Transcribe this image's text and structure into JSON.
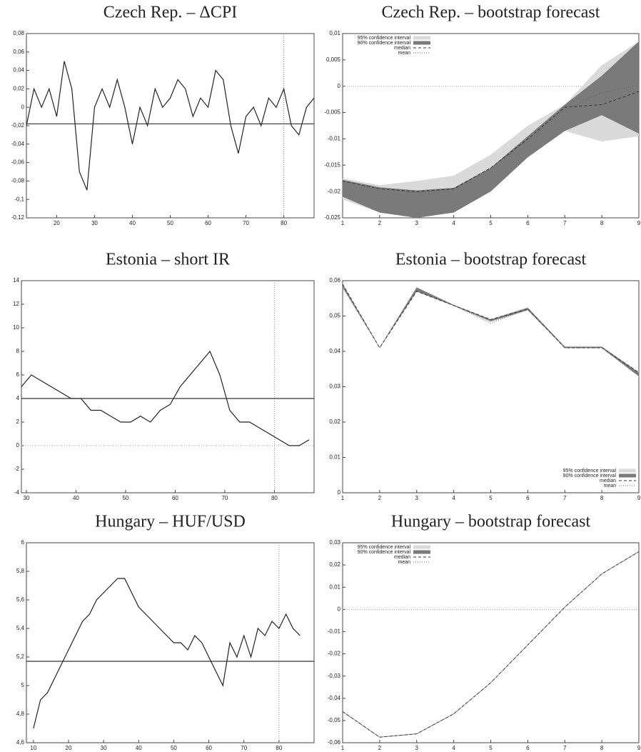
{
  "chart_data": [
    {
      "type": "line",
      "title": "Czech Rep. – ΔCPI",
      "x": [
        12,
        14,
        16,
        18,
        20,
        22,
        24,
        26,
        28,
        30,
        32,
        34,
        36,
        38,
        40,
        42,
        44,
        46,
        48,
        50,
        52,
        54,
        56,
        58,
        60,
        62,
        64,
        66,
        68,
        70,
        72,
        74,
        76,
        78,
        80,
        82,
        84,
        86,
        88
      ],
      "series": [
        {
          "color": "#222222",
          "values": [
            -0.02,
            0.02,
            0.0,
            0.02,
            -0.01,
            0.05,
            0.02,
            -0.07,
            -0.09,
            0.0,
            0.02,
            0.0,
            0.03,
            0.0,
            -0.04,
            0.0,
            -0.02,
            0.02,
            0.0,
            0.01,
            0.03,
            0.02,
            -0.01,
            0.01,
            0.0,
            0.04,
            0.03,
            -0.02,
            -0.05,
            -0.01,
            0.0,
            -0.02,
            0.01,
            0.0,
            0.02,
            -0.02,
            -0.03,
            0.0,
            0.01
          ]
        }
      ],
      "hline": -0.018,
      "vline": 80,
      "xlim": [
        12,
        88
      ],
      "xticks": [
        20,
        30,
        40,
        50,
        60,
        70,
        80
      ],
      "ylim": [
        -0.12,
        0.08
      ],
      "yticks": [
        {
          "value": -0.12,
          "label": "-0,12"
        },
        {
          "value": -0.1,
          "label": "-0,1"
        },
        {
          "value": -0.08,
          "label": "-0,08"
        },
        {
          "value": -0.06,
          "label": "-0,06"
        },
        {
          "value": -0.04,
          "label": "-0,04"
        },
        {
          "value": -0.02,
          "label": "-0,02"
        },
        0,
        {
          "value": 0.02,
          "label": "0,02"
        },
        {
          "value": 0.04,
          "label": "0,04"
        },
        {
          "value": 0.06,
          "label": "0,06"
        },
        {
          "value": 0.08,
          "label": "0,08"
        }
      ]
    },
    {
      "type": "line",
      "title": "Czech Rep. – bootstrap forecast",
      "x": [
        1,
        2,
        3,
        4,
        5,
        6,
        7,
        8,
        9
      ],
      "zero_line": true,
      "legend": "upper left",
      "series": [
        {
          "name": "95% confidence interval",
          "color": "#dadada",
          "lower": [
            -0.0215,
            -0.024,
            -0.025,
            -0.024,
            -0.02,
            -0.0135,
            -0.0085,
            -0.0105,
            -0.0095
          ],
          "upper": [
            -0.0175,
            -0.0188,
            -0.018,
            -0.017,
            -0.013,
            -0.0075,
            -0.0035,
            0.004,
            0.0085
          ]
        },
        {
          "name": "90% confidence interval",
          "color": "#7a7a7a",
          "lower": [
            -0.021,
            -0.024,
            -0.025,
            -0.024,
            -0.02,
            -0.0135,
            -0.0085,
            -0.0055,
            -0.009
          ],
          "upper": [
            -0.0178,
            -0.0192,
            -0.0198,
            -0.0193,
            -0.0155,
            -0.0095,
            -0.0035,
            0.002,
            0.0085
          ]
        },
        {
          "name": "median",
          "color": "#333333",
          "dash": "dashed",
          "values": [
            -0.018,
            -0.0195,
            -0.02,
            -0.0195,
            -0.0155,
            -0.01,
            -0.004,
            -0.0035,
            -0.001
          ]
        },
        {
          "name": "mean",
          "color": "#666666",
          "dash": "dotted",
          "values": [
            -0.018,
            -0.0195,
            -0.0202,
            -0.0196,
            -0.0157,
            -0.0102,
            -0.0045,
            -0.0012,
            0.0002
          ]
        }
      ],
      "xlim": [
        1,
        9
      ],
      "xticks": [
        1,
        2,
        3,
        4,
        5,
        6,
        7,
        8,
        9
      ],
      "ylim": [
        -0.025,
        0.01
      ],
      "yticks": [
        {
          "value": -0.025,
          "label": "-0,025"
        },
        {
          "value": -0.02,
          "label": "-0,02"
        },
        {
          "value": -0.015,
          "label": "-0,015"
        },
        {
          "value": -0.01,
          "label": "-0,01"
        },
        {
          "value": -0.005,
          "label": "-0,005"
        },
        0,
        {
          "value": 0.005,
          "label": "0,005"
        },
        {
          "value": 0.01,
          "label": "0,01"
        }
      ]
    },
    {
      "type": "line",
      "title": "Estonia – short IR",
      "x": [
        29,
        31,
        33,
        35,
        37,
        39,
        41,
        43,
        45,
        47,
        49,
        51,
        53,
        55,
        57,
        59,
        61,
        63,
        65,
        67,
        69,
        71,
        73,
        75,
        77,
        79,
        81,
        83,
        85,
        87
      ],
      "series": [
        {
          "color": "#222222",
          "values": [
            5,
            6,
            5.5,
            5,
            4.5,
            4,
            4,
            3,
            3,
            2.5,
            2,
            2,
            2.5,
            2,
            3,
            3.5,
            5,
            6,
            7,
            8,
            6,
            3,
            2,
            2,
            1.5,
            1,
            0.5,
            0,
            0,
            0.5
          ]
        }
      ],
      "hline": 4,
      "vline": 80,
      "zero_line": true,
      "xlim": [
        29,
        88
      ],
      "xticks": [
        30,
        40,
        50,
        60,
        70,
        80
      ],
      "ylim": [
        -4,
        14
      ],
      "yticks": [
        -4,
        -2,
        0,
        2,
        4,
        6,
        8,
        10,
        12,
        14
      ]
    },
    {
      "type": "line",
      "title": "Estonia – bootstrap forecast",
      "x": [
        1,
        2,
        3,
        4,
        5,
        6,
        7,
        8,
        9
      ],
      "legend": "lower right",
      "series": [
        {
          "name": "95% confidence interval",
          "color": "#dadada",
          "lower": [
            0.058,
            0.041,
            0.0568,
            0.0528,
            0.0483,
            0.0515,
            0.0408,
            0.0408,
            0.0328
          ],
          "upper": [
            0.0592,
            0.0412,
            0.0582,
            0.0532,
            0.0492,
            0.0525,
            0.0415,
            0.0415,
            0.0342
          ]
        },
        {
          "name": "90% confidence interval",
          "color": "#7a7a7a",
          "lower": [
            0.0582,
            0.041,
            0.057,
            0.0529,
            0.0485,
            0.0517,
            0.041,
            0.041,
            0.033
          ],
          "upper": [
            0.059,
            0.0411,
            0.058,
            0.0531,
            0.049,
            0.0523,
            0.0413,
            0.0413,
            0.034
          ]
        },
        {
          "name": "median",
          "color": "#333333",
          "dash": "dashed",
          "values": [
            0.059,
            0.041,
            0.057,
            0.053,
            0.049,
            0.052,
            0.041,
            0.041,
            0.034
          ]
        },
        {
          "name": "mean",
          "color": "#666666",
          "dash": "dotted",
          "values": [
            0.058,
            0.041,
            0.058,
            0.053,
            0.048,
            0.052,
            0.041,
            0.041,
            0.033
          ]
        }
      ],
      "xlim": [
        1,
        9
      ],
      "xticks": [
        1,
        2,
        3,
        4,
        5,
        6,
        7,
        8,
        9
      ],
      "ylim": [
        0,
        0.06
      ],
      "yticks": [
        0,
        {
          "value": 0.01,
          "label": "0,01"
        },
        {
          "value": 0.02,
          "label": "0,02"
        },
        {
          "value": 0.03,
          "label": "0,03"
        },
        {
          "value": 0.04,
          "label": "0,04"
        },
        {
          "value": 0.05,
          "label": "0,05"
        },
        {
          "value": 0.06,
          "label": "0,06"
        }
      ]
    },
    {
      "type": "line",
      "title": "Hungary – HUF/USD",
      "x": [
        10,
        12,
        14,
        16,
        18,
        20,
        22,
        24,
        26,
        28,
        30,
        32,
        34,
        36,
        38,
        40,
        42,
        44,
        46,
        48,
        50,
        52,
        54,
        56,
        58,
        60,
        62,
        64,
        66,
        68,
        70,
        72,
        74,
        76,
        78,
        80,
        82,
        84,
        86
      ],
      "series": [
        {
          "color": "#222222",
          "values": [
            4.7,
            4.9,
            4.95,
            5.05,
            5.15,
            5.25,
            5.35,
            5.45,
            5.5,
            5.6,
            5.65,
            5.7,
            5.75,
            5.75,
            5.65,
            5.55,
            5.5,
            5.45,
            5.4,
            5.35,
            5.3,
            5.3,
            5.25,
            5.35,
            5.3,
            5.2,
            5.1,
            5.0,
            5.3,
            5.2,
            5.35,
            5.2,
            5.4,
            5.35,
            5.45,
            5.4,
            5.5,
            5.4,
            5.35
          ]
        }
      ],
      "hline": 5.17,
      "vline": 80,
      "xlim": [
        8,
        90
      ],
      "xticks": [
        10,
        20,
        30,
        40,
        50,
        60,
        70,
        80
      ],
      "ylim": [
        4.6,
        6
      ],
      "yticks": [
        {
          "value": 4.6,
          "label": "4,6"
        },
        {
          "value": 4.8,
          "label": "4,8"
        },
        5,
        {
          "value": 5.2,
          "label": "5,2"
        },
        {
          "value": 5.4,
          "label": "5,4"
        },
        {
          "value": 5.6,
          "label": "5,6"
        },
        {
          "value": 5.8,
          "label": "5,8"
        },
        6
      ]
    },
    {
      "type": "line",
      "title": "Hungary – bootstrap forecast",
      "x": [
        1,
        2,
        3,
        4,
        5,
        6,
        7,
        8,
        9
      ],
      "zero_line": true,
      "legend": "upper left",
      "series": [
        {
          "name": "95% confidence interval",
          "color": "#dadada",
          "lower": [
            -0.0462,
            -0.0577,
            -0.0562,
            -0.0472,
            -0.0332,
            -0.0162,
            0.0008,
            0.0158,
            0.0258
          ],
          "upper": [
            -0.0458,
            -0.0573,
            -0.0558,
            -0.0468,
            -0.0328,
            -0.0158,
            0.0012,
            0.0162,
            0.0262
          ]
        },
        {
          "name": "90% confidence interval",
          "color": "#7a7a7a",
          "lower": [
            -0.0461,
            -0.0576,
            -0.0561,
            -0.0471,
            -0.0331,
            -0.0161,
            0.0009,
            0.0159,
            0.0259
          ],
          "upper": [
            -0.0459,
            -0.0574,
            -0.0559,
            -0.0469,
            -0.0329,
            -0.0159,
            0.0011,
            0.0161,
            0.0261
          ]
        },
        {
          "name": "median",
          "color": "#333333",
          "dash": "dashed",
          "values": [
            -0.046,
            -0.0575,
            -0.056,
            -0.047,
            -0.033,
            -0.016,
            0.001,
            0.016,
            0.026
          ]
        },
        {
          "name": "mean",
          "color": "#666666",
          "dash": "dotted",
          "values": [
            -0.046,
            -0.0575,
            -0.056,
            -0.047,
            -0.033,
            -0.016,
            0.001,
            0.016,
            0.026
          ]
        }
      ],
      "xlim": [
        1,
        9
      ],
      "xticks": [
        1,
        2,
        3,
        4,
        5,
        6,
        7,
        8,
        9
      ],
      "ylim": [
        -0.06,
        0.03
      ],
      "yticks": [
        {
          "value": -0.06,
          "label": "-0,06"
        },
        {
          "value": -0.05,
          "label": "-0,05"
        },
        {
          "value": -0.04,
          "label": "-0,04"
        },
        {
          "value": -0.03,
          "label": "-0,03"
        },
        {
          "value": -0.02,
          "label": "-0,02"
        },
        {
          "value": -0.01,
          "label": "-0,01"
        },
        0,
        {
          "value": 0.01,
          "label": "0,01"
        },
        {
          "value": 0.02,
          "label": "0,02"
        },
        {
          "value": 0.03,
          "label": "0,03"
        }
      ]
    }
  ]
}
